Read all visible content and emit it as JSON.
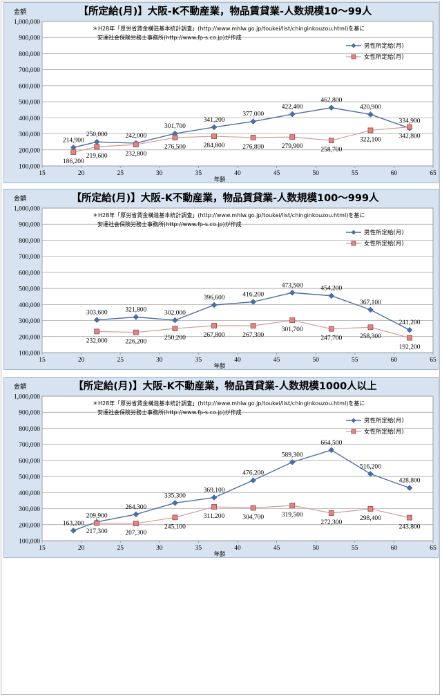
{
  "chart_data": [
    {
      "type": "line",
      "title": "【所定給(月)】大阪-K不動産業，物品賃貸業-人数規模10～99人",
      "ylabel": "金額",
      "xlabel": "年齢",
      "note_lines": [
        "＊H28年「厚労省賃金構造基本統計調査」(http://www.mhlw.go.jp/toukei/list/chinginkouzou.html)を基に",
        "安達社会保険労務士事務所(http://www.fp-s.co.jp)が作成"
      ],
      "xlim": [
        15,
        65
      ],
      "ylim": [
        100000,
        1000000
      ],
      "xticks": [
        "15",
        "20",
        "25",
        "30",
        "35",
        "40",
        "45",
        "50",
        "55",
        "60",
        "65"
      ],
      "yticks": [
        "100,000",
        "200,000",
        "300,000",
        "400,000",
        "500,000",
        "600,000",
        "700,000",
        "800,000",
        "900,000",
        "1,000,000"
      ],
      "legend_position": "top-right",
      "grid": true,
      "series": [
        {
          "name": "男性所定給(月)",
          "color": "#4a6ea8",
          "x": [
            19,
            22,
            27,
            32,
            37,
            42,
            47,
            52,
            57,
            62
          ],
          "values": [
            214900,
            250000,
            242000,
            301700,
            341200,
            377000,
            422400,
            462800,
            420900,
            334900
          ],
          "labels": [
            "214,900",
            "250,000",
            "242,000",
            "301,700",
            "341,200",
            "377,000",
            "422,400",
            "462,800",
            "420,900",
            "334,900"
          ]
        },
        {
          "name": "女性所定給(月)",
          "color": "#c0504d",
          "x": [
            19,
            22,
            27,
            32,
            37,
            42,
            47,
            52,
            57,
            62
          ],
          "values": [
            186200,
            219600,
            232800,
            276500,
            284800,
            276800,
            279900,
            258700,
            322100,
            342800
          ],
          "labels": [
            "186,200",
            "219,600",
            "232,800",
            "276,500",
            "284,800",
            "276,800",
            "279,900",
            "258,700",
            "322,100",
            "342,800"
          ]
        }
      ]
    },
    {
      "type": "line",
      "title": "【所定給(月)】大阪-K不動産業，物品賃貸業-人数規模100～999人",
      "ylabel": "金額",
      "xlabel": "年齢",
      "note_lines": [
        "＊H28年「厚労省賃金構造基本統計調査」(http://www.mhlw.go.jp/toukei/list/chinginkouzou.html)を基に",
        "安達社会保険労務士事務所(http://www.fp-s.co.jp)が作成"
      ],
      "xlim": [
        15,
        65
      ],
      "ylim": [
        100000,
        1000000
      ],
      "xticks": [
        "15",
        "20",
        "25",
        "30",
        "35",
        "40",
        "45",
        "50",
        "55",
        "60",
        "65"
      ],
      "yticks": [
        "100,000",
        "200,000",
        "300,000",
        "400,000",
        "500,000",
        "600,000",
        "700,000",
        "800,000",
        "900,000",
        "1,000,000"
      ],
      "legend_position": "top-right",
      "grid": true,
      "series": [
        {
          "name": "男性所定給(月)",
          "color": "#4a6ea8",
          "x": [
            22,
            27,
            32,
            37,
            42,
            47,
            52,
            57,
            62
          ],
          "values": [
            303600,
            321800,
            302000,
            396600,
            416200,
            473500,
            454200,
            367100,
            241200
          ],
          "labels": [
            "303,600",
            "321,800",
            "302,000",
            "396,600",
            "416,200",
            "473,500",
            "454,200",
            "367,100",
            "241,200"
          ]
        },
        {
          "name": "女性所定給(月)",
          "color": "#c0504d",
          "x": [
            22,
            27,
            32,
            37,
            42,
            47,
            52,
            57,
            62
          ],
          "values": [
            232000,
            226200,
            250200,
            267800,
            267300,
            301700,
            247700,
            258300,
            192200
          ],
          "labels": [
            "232,000",
            "226,200",
            "250,200",
            "267,800",
            "267,300",
            "301,700",
            "247,700",
            "258,300",
            "192,200"
          ]
        }
      ]
    },
    {
      "type": "line",
      "title": "【所定給(月)】大阪-K不動産業，物品賃貸業-人数規模1000人以上",
      "ylabel": "金額",
      "xlabel": "年齢",
      "note_lines": [
        "＊H28年「厚労省賃金構造基本統計調査」(http://www.mhlw.go.jp/toukei/list/chinginkouzou.html)を基に",
        "安達社会保険労務士事務所(http://www.fp-s.co.jp)が作成"
      ],
      "xlim": [
        15,
        65
      ],
      "ylim": [
        100000,
        1000000
      ],
      "xticks": [
        "15",
        "20",
        "25",
        "30",
        "35",
        "40",
        "45",
        "50",
        "55",
        "60",
        "65"
      ],
      "yticks": [
        "100,000",
        "200,000",
        "300,000",
        "400,000",
        "500,000",
        "600,000",
        "700,000",
        "800,000",
        "900,000",
        "1,000,000"
      ],
      "legend_position": "top-right",
      "grid": true,
      "series": [
        {
          "name": "男性所定給(月)",
          "color": "#4a6ea8",
          "x": [
            19,
            22,
            27,
            32,
            37,
            42,
            47,
            52,
            57,
            62
          ],
          "values": [
            163200,
            217300,
            264300,
            335300,
            369100,
            476200,
            589300,
            664500,
            516200,
            428800
          ],
          "labels": [
            "163,200",
            "217,300",
            "264,300",
            "335,300",
            "369,100",
            "476,200",
            "589,300",
            "664,500",
            "516,200",
            "428,800"
          ]
        },
        {
          "name": "女性所定給(月)",
          "color": "#c0504d",
          "x": [
            22,
            27,
            32,
            37,
            42,
            47,
            52,
            57,
            62
          ],
          "values": [
            209900,
            207300,
            245100,
            311200,
            304700,
            319500,
            272300,
            298400,
            243800
          ],
          "labels": [
            "209,900",
            "207,300",
            "245,100",
            "311,200",
            "304,700",
            "319,500",
            "272,300",
            "298,400",
            "243,800"
          ]
        }
      ]
    }
  ]
}
